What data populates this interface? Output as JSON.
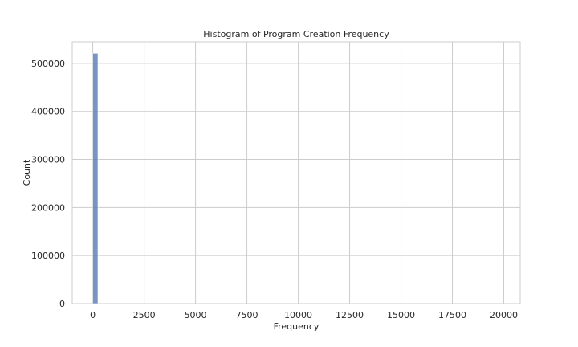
{
  "chart_data": {
    "type": "bar",
    "title": "Histogram of Program Creation Frequency",
    "xlabel": "Frequency",
    "ylabel": "Count",
    "xlim": [
      -1000,
      20800
    ],
    "ylim": [
      0,
      545000
    ],
    "x_ticks": [
      0,
      2500,
      5000,
      7500,
      10000,
      12500,
      15000,
      17500,
      20000
    ],
    "y_ticks": [
      0,
      100000,
      200000,
      300000,
      400000,
      500000
    ],
    "grid": true,
    "bar_color": "#4c72b0",
    "bins": [
      {
        "x0": 0,
        "x1": 250,
        "count": 521000
      }
    ]
  }
}
